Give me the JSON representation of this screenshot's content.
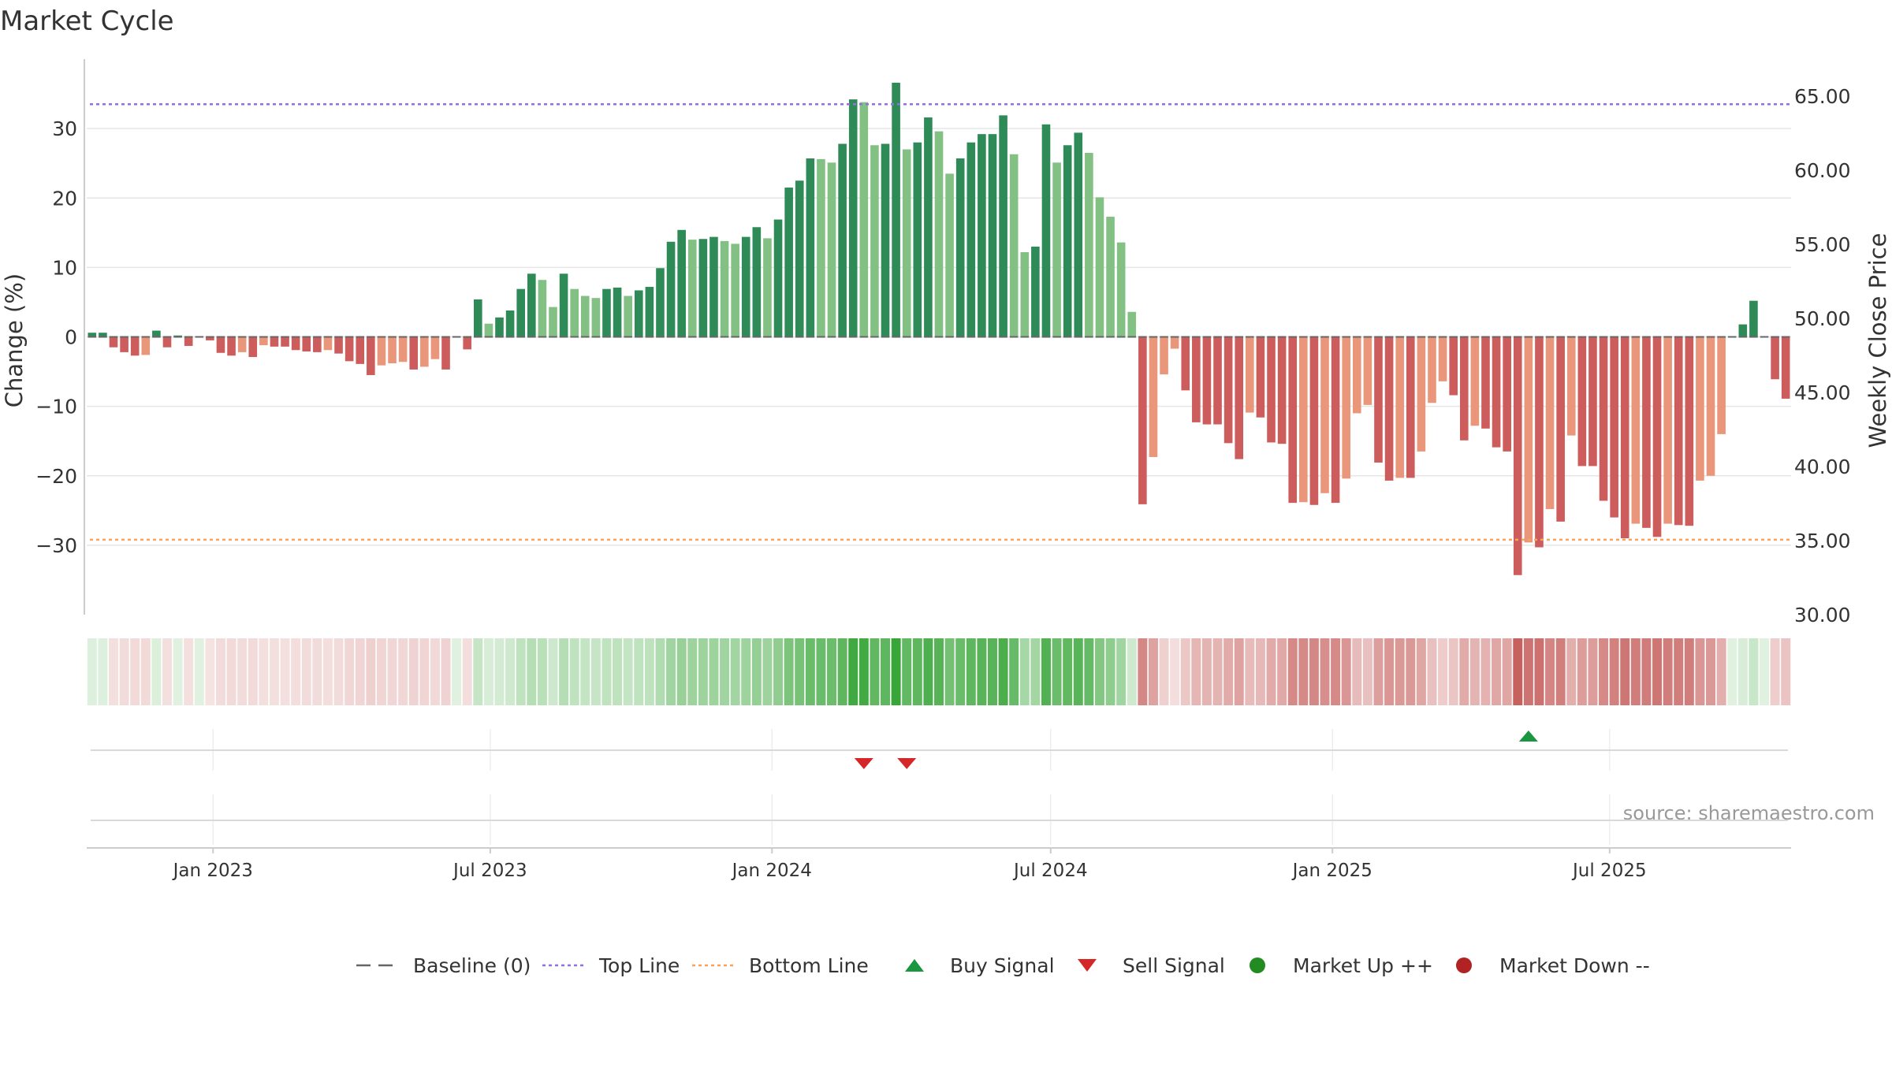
{
  "title": "Market Cycle",
  "source": "source: sharemaestro.com",
  "colors": {
    "up_strong": "#2e8b57",
    "up_light": "#82c083",
    "down_strong": "#cd5c5c",
    "down_light": "#e9967a",
    "top_line": "#9370db",
    "bottom_line": "#f4a460",
    "baseline": "#666666",
    "buy": "#1a9641",
    "sell": "#d62728",
    "market_up": "#228b22",
    "market_down": "#b22222",
    "strip_pos": "#2ca02c",
    "strip_neg": "#c0504d"
  },
  "legend": [
    {
      "label": "Baseline (0)",
      "symbol": "dash",
      "color": "#666666"
    },
    {
      "label": "Top Line",
      "symbol": "dot-line",
      "color": "#9370db"
    },
    {
      "label": "Bottom Line",
      "symbol": "dot-line",
      "color": "#f4a460"
    },
    {
      "label": "Buy Signal",
      "symbol": "triangle-up",
      "color": "#1a9641"
    },
    {
      "label": "Sell Signal",
      "symbol": "triangle-down",
      "color": "#d62728"
    },
    {
      "label": "Market Up ++",
      "symbol": "circle",
      "color": "#228b22"
    },
    {
      "label": "Market Down --",
      "symbol": "circle",
      "color": "#b22222"
    }
  ],
  "chart_data": {
    "type": "bar",
    "title": "Market Cycle",
    "ylabel": "Change (%)",
    "y2label": "Weekly Close Price",
    "ylim": [
      -40,
      40
    ],
    "y2lim": [
      30,
      67.5
    ],
    "y_ticks": [
      "30",
      "20",
      "10",
      "0",
      "−10",
      "−20",
      "−30"
    ],
    "y_tick_values": [
      30,
      20,
      10,
      0,
      -10,
      -20,
      -30
    ],
    "y2_ticks": [
      "65.00",
      "60.00",
      "55.00",
      "50.00",
      "45.00",
      "40.00",
      "35.00",
      "30.00"
    ],
    "y2_tick_values": [
      65,
      60,
      55,
      50,
      45,
      40,
      35,
      30
    ],
    "x_ticks": [
      "Jan 2023",
      "Jul 2023",
      "Jan 2024",
      "Jul 2024",
      "Jan 2025",
      "Jul 2025"
    ],
    "x_tick_dates": [
      "2023-01-01",
      "2023-07-01",
      "2024-01-01",
      "2024-07-01",
      "2025-01-01",
      "2025-07-01"
    ],
    "start_date": "2022-10-14",
    "week_days": 7,
    "top_line": 33.5,
    "bottom_line": -29.2,
    "baseline": 0,
    "grid": true,
    "legend_position": "bottom",
    "values": [
      0.6,
      0.6,
      -1.5,
      -2.2,
      -2.7,
      -2.6,
      0.9,
      -1.5,
      0.2,
      -1.3,
      0.0,
      -0.5,
      -2.3,
      -2.7,
      -2.2,
      -2.9,
      -1.2,
      -1.4,
      -1.4,
      -1.9,
      -2.1,
      -2.2,
      -1.9,
      -2.4,
      -3.5,
      -3.9,
      -5.5,
      -4.1,
      -3.8,
      -3.6,
      -4.7,
      -4.3,
      -3.2,
      -4.7,
      0.0,
      -1.8,
      5.4,
      1.9,
      2.8,
      3.8,
      6.9,
      9.1,
      8.2,
      4.3,
      9.1,
      6.9,
      5.9,
      5.6,
      6.9,
      7.1,
      5.9,
      6.7,
      7.2,
      9.9,
      13.7,
      15.4,
      14.0,
      14.1,
      14.4,
      13.8,
      13.4,
      14.4,
      15.8,
      14.2,
      16.9,
      21.5,
      22.5,
      25.7,
      25.6,
      25.1,
      27.8,
      34.2,
      33.8,
      27.6,
      27.8,
      36.6,
      27.0,
      28.0,
      31.6,
      29.6,
      23.5,
      25.7,
      28.0,
      29.2,
      29.2,
      31.9,
      26.3,
      12.2,
      13.0,
      30.6,
      25.1,
      27.6,
      29.4,
      26.5,
      20.1,
      17.3,
      13.6,
      3.6,
      -24.1,
      -17.3,
      -5.4,
      -1.7,
      -7.7,
      -12.3,
      -12.6,
      -12.6,
      -15.3,
      -17.6,
      -10.9,
      -11.6,
      -15.2,
      -15.4,
      -23.9,
      -23.8,
      -24.2,
      -22.5,
      -23.9,
      -20.4,
      -11.0,
      -9.8,
      -18.1,
      -20.7,
      -20.3,
      -20.3,
      -16.5,
      -9.5,
      -6.4,
      -8.4,
      -14.9,
      -12.8,
      -13.2,
      -15.9,
      -16.5,
      -34.3,
      -29.6,
      -30.3,
      -24.8,
      -26.6,
      -14.2,
      -18.6,
      -18.6,
      -23.6,
      -26.0,
      -29.0,
      -26.9,
      -27.5,
      -28.8,
      -26.9,
      -27.1,
      -27.2,
      -20.7,
      -20.0,
      -14.0,
      0.0,
      1.8,
      5.2,
      0.0,
      -6.1,
      -8.9
    ]
  },
  "signals": [
    {
      "type": "sell",
      "week": 72
    },
    {
      "type": "sell",
      "week": 76
    },
    {
      "type": "buy",
      "week": 134
    }
  ]
}
